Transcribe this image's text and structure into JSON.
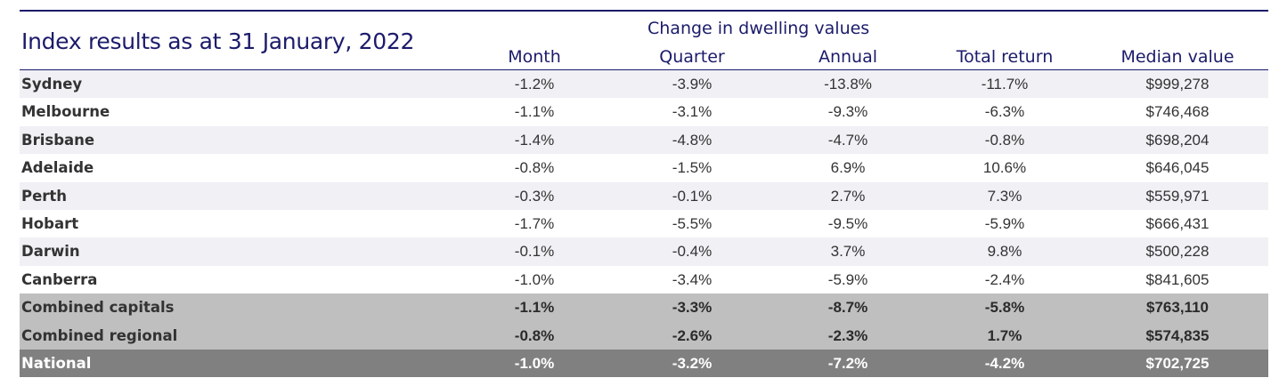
{
  "title": "Index results as at 31 January, 2022",
  "group_header": "Change in dwelling values",
  "columns": [
    "Month",
    "Quarter",
    "Annual",
    "Total return",
    "Median value"
  ],
  "rows": [
    {
      "name": "Sydney",
      "values": [
        "-1.2%",
        "-3.9%",
        "-13.8%",
        "-11.7%",
        "$999,278"
      ]
    },
    {
      "name": "Melbourne",
      "values": [
        "-1.1%",
        "-3.1%",
        "-9.3%",
        "-6.3%",
        "$746,468"
      ]
    },
    {
      "name": "Brisbane",
      "values": [
        "-1.4%",
        "-4.8%",
        "-4.7%",
        "-0.8%",
        "$698,204"
      ]
    },
    {
      "name": "Adelaide",
      "values": [
        "-0.8%",
        "-1.5%",
        "6.9%",
        "10.6%",
        "$646,045"
      ]
    },
    {
      "name": "Perth",
      "values": [
        "-0.3%",
        "-0.1%",
        "2.7%",
        "7.3%",
        "$559,971"
      ]
    },
    {
      "name": "Hobart",
      "values": [
        "-1.7%",
        "-5.5%",
        "-9.5%",
        "-5.9%",
        "$666,431"
      ]
    },
    {
      "name": "Darwin",
      "values": [
        "-0.1%",
        "-0.4%",
        "3.7%",
        "9.8%",
        "$500,228"
      ]
    },
    {
      "name": "Canberra",
      "values": [
        "-1.0%",
        "-3.4%",
        "-5.9%",
        "-2.4%",
        "$841,605"
      ]
    },
    {
      "name": "Combined capitals",
      "values": [
        "-1.1%",
        "-3.3%",
        "-8.7%",
        "-5.8%",
        "$763,110"
      ]
    },
    {
      "name": "Combined regional",
      "values": [
        "-0.8%",
        "-2.6%",
        "-2.3%",
        "1.7%",
        "$574,835"
      ]
    },
    {
      "name": "National",
      "values": [
        "-1.0%",
        "-3.2%",
        "-7.2%",
        "-4.2%",
        "$702,725"
      ]
    }
  ]
}
